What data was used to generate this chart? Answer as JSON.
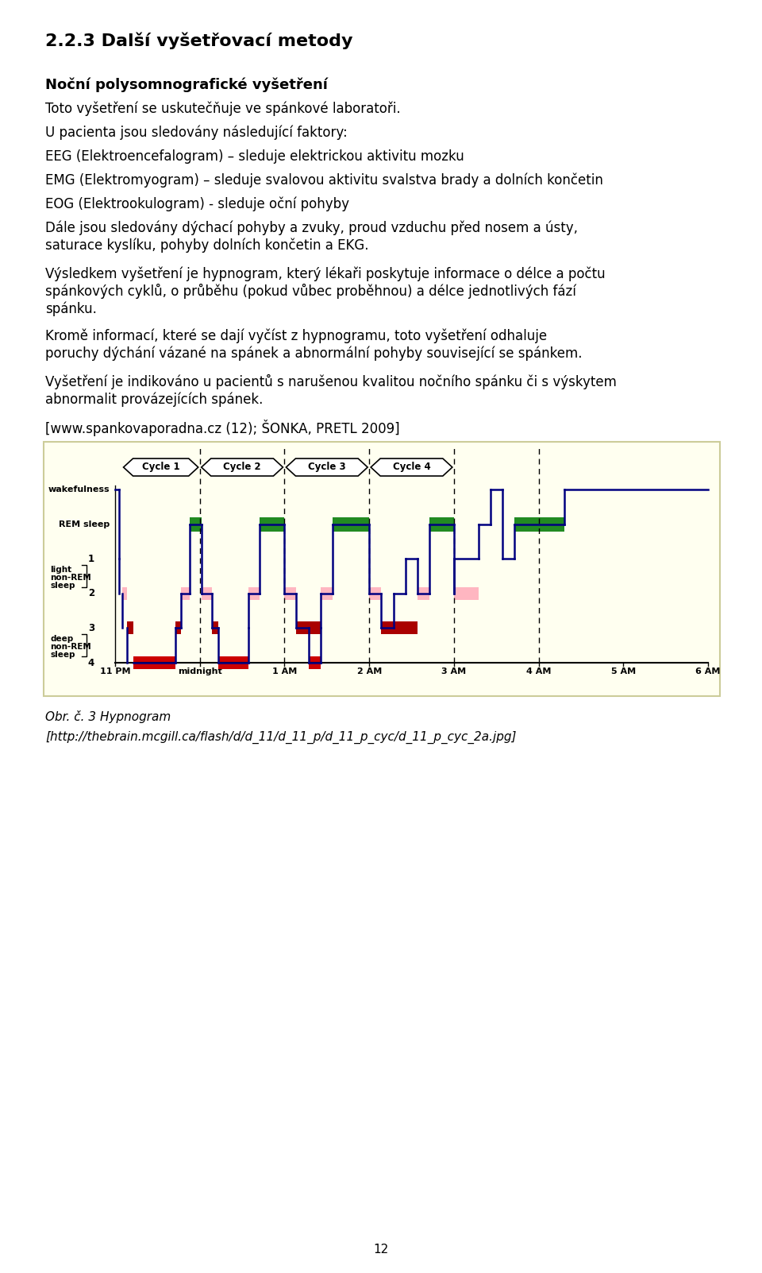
{
  "title": "2.2.3 Další vyšetřovací metody",
  "para0_bold": "Noční polysomnografické vyšetření",
  "para1": "Toto vyšetření se uskutečňuje ve spánkové laboratoři.",
  "para2": "U pacienta jsou sledovány následující faktory:",
  "para3": "EEG (Elektroencefalogram) – sleduje elektrickou aktivitu mozku",
  "para4": "EMG (Elektromyogram) – sleduje svalovou aktivitu svalstva brady a dolních končetin",
  "para5": "EOG (Elektrookulogram) - sleduje oční pohyby",
  "para6a": "Dále jsou sledovány dýchací pohyby a zvuky, proud vzduchu před nosem a ústy,",
  "para6b": "saturace kyslíku, pohyby dolních končetin a EKG.",
  "para7a": "Výsledkem vyšetření je hypnogram, který lékaři poskytuje informace o délce a počtu",
  "para7b": "spánkových cyklů, o průběhu (pokud vůbec proběhnou) a délce jednotlivých fází",
  "para7c": "spánku.",
  "para8a": "Kromě informací, které se dají vyčíst z hypnogramu, toto vyšetření odhaluje",
  "para8b": "poruchy dýchání vázané na spánek a abnormální pohyby související se spánkem.",
  "para9a": "Vyšetření je indikováno u pacientů s narušenou kvalitou nočního spánku či s výskytem",
  "para9b": "abnormalit provázejících spánek.",
  "para10": "[www.spankovaporadna.cz (12); ŠONKA, PRETL 2009]",
  "caption1": "Obr. č. 3 Hypnogram",
  "caption2": "[http://thebrain.mcgill.ca/flash/d/d_11/d_11_p/d_11_p_cyc/d_11_p_cyc_2a.jpg]",
  "page_number": "12",
  "chart_bg": "#fffff0",
  "rem_color": "#228B22",
  "pink_color": "#FFB6C1",
  "red_color": "#CC0000",
  "darkred_color": "#AA0000",
  "line_color": "#000080"
}
